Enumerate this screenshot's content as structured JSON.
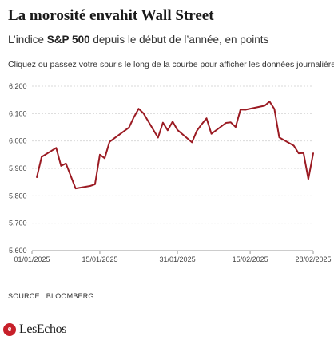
{
  "header": {
    "title": "La morosité envahit Wall Street",
    "subtitle_prefix": "L’indice ",
    "subtitle_bold": "S&P 500",
    "subtitle_suffix": " depuis le début de l’année, en points",
    "instructions": "Cliquez ou passez votre souris le long de la courbe pour afficher les données journalières."
  },
  "footer": {
    "source": "SOURCE : BLOOMBERG",
    "brand": "LesEchos"
  },
  "colors": {
    "line": "#9b1b23",
    "grid": "#d9d9d9",
    "axis": "#999999",
    "brand": "#c7202a"
  },
  "chart_data": {
    "type": "line",
    "title": "La morosité envahit Wall Street",
    "subtitle": "L’indice S&P 500 depuis le début de l’année, en points",
    "xlabel": "",
    "ylabel": "",
    "ylim": [
      5600,
      6200
    ],
    "yticks": [
      5600,
      5700,
      5800,
      5900,
      6000,
      6100,
      6200
    ],
    "ytick_labels": [
      "5.600",
      "5.700",
      "5.800",
      "5.900",
      "6.000",
      "6.100",
      "6.200"
    ],
    "xlim": [
      "2025-01-01",
      "2025-02-28"
    ],
    "xticks": [
      "2025-01-01",
      "2025-01-15",
      "2025-01-31",
      "2025-02-15",
      "2025-02-28"
    ],
    "xtick_labels": [
      "01/01/2025",
      "15/01/2025",
      "31/01/2025",
      "15/02/2025",
      "28/02/2025"
    ],
    "grid": "horizontal",
    "legend": "none",
    "series": [
      {
        "x": [
          "2025-01-02",
          "2025-01-03",
          "2025-01-06",
          "2025-01-07",
          "2025-01-08",
          "2025-01-10",
          "2025-01-13",
          "2025-01-14",
          "2025-01-15",
          "2025-01-16",
          "2025-01-17",
          "2025-01-21",
          "2025-01-22",
          "2025-01-23",
          "2025-01-24",
          "2025-01-27",
          "2025-01-28",
          "2025-01-29",
          "2025-01-30",
          "2025-01-31",
          "2025-02-03",
          "2025-02-04",
          "2025-02-05",
          "2025-02-06",
          "2025-02-07",
          "2025-02-10",
          "2025-02-11",
          "2025-02-12",
          "2025-02-13",
          "2025-02-14",
          "2025-02-18",
          "2025-02-19",
          "2025-02-20",
          "2025-02-21",
          "2025-02-24",
          "2025-02-25",
          "2025-02-26",
          "2025-02-27",
          "2025-02-28"
        ],
        "values": [
          5868,
          5942,
          5975,
          5909,
          5918,
          5827,
          5836,
          5842,
          5950,
          5937,
          5997,
          6049,
          6086,
          6118,
          6101,
          6012,
          6067,
          6039,
          6071,
          6040,
          5995,
          6037,
          6061,
          6083,
          6026,
          6066,
          6068,
          6051,
          6115,
          6114,
          6129,
          6144,
          6117,
          6013,
          5983,
          5955,
          5956,
          5861,
          5955
        ]
      }
    ]
  }
}
